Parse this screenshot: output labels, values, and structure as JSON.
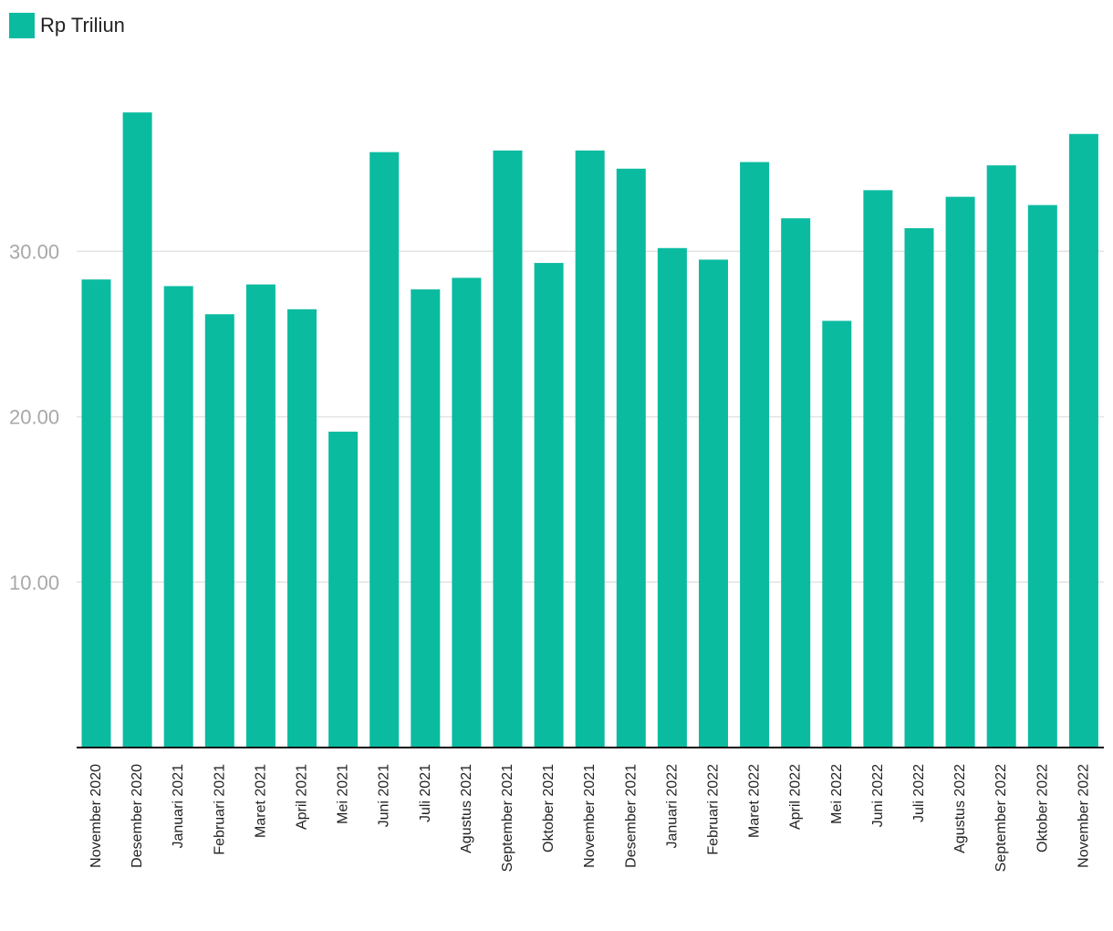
{
  "chart_data": {
    "type": "bar",
    "title": "",
    "xlabel": "",
    "ylabel": "",
    "ylim": [
      0,
      40
    ],
    "yticks": [
      10,
      20,
      30
    ],
    "ytick_labels": [
      "10.00",
      "20.00",
      "30.00"
    ],
    "grid": true,
    "legend_position": "top-left",
    "categories": [
      "November 2020",
      "Desember 2020",
      "Januari 2021",
      "Februari 2021",
      "Maret 2021",
      "April 2021",
      "Mei 2021",
      "Juni 2021",
      "Juli 2021",
      "Agustus 2021",
      "September 2021",
      "Oktober 2021",
      "November 2021",
      "Desember 2021",
      "Januari 2022",
      "Februari 2022",
      "Maret 2022",
      "April 2022",
      "Mei 2022",
      "Juni 2022",
      "Juli 2022",
      "Agustus 2022",
      "September 2022",
      "Oktober 2022",
      "November 2022"
    ],
    "series": [
      {
        "name": "Rp Triliun",
        "color": "#0bbba0",
        "values": [
          28.3,
          38.4,
          27.9,
          26.2,
          28.0,
          26.5,
          19.1,
          36.0,
          27.7,
          28.4,
          36.1,
          29.3,
          36.1,
          35.0,
          30.2,
          29.5,
          35.4,
          32.0,
          25.8,
          33.7,
          31.4,
          33.3,
          35.2,
          32.8,
          37.1
        ]
      }
    ]
  }
}
